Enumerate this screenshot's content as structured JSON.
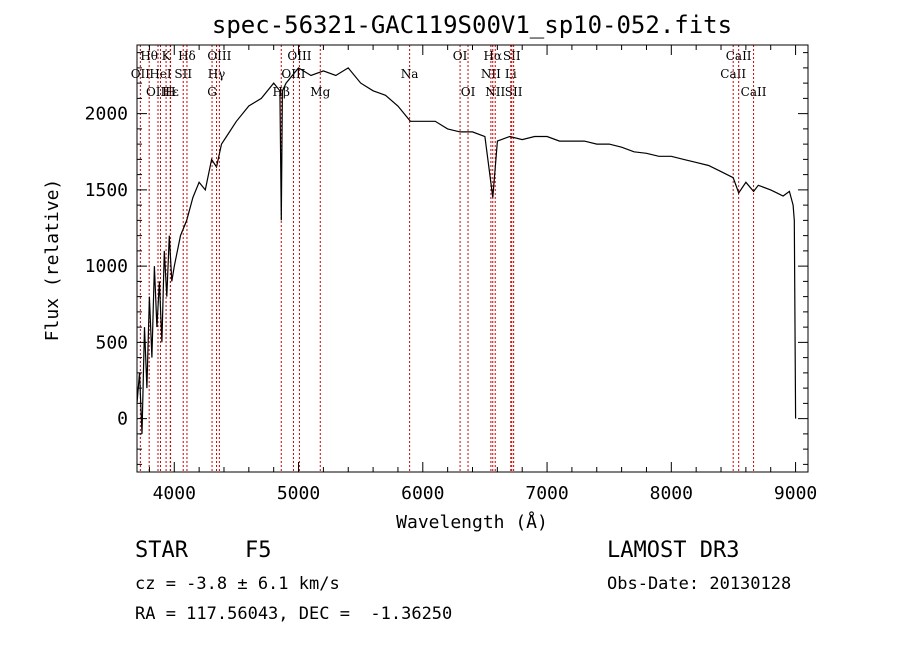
{
  "chart_data": {
    "type": "line",
    "title": "spec-56321-GAC119S00V1_sp10-052.fits",
    "xlabel": "Wavelength (Å)",
    "ylabel": "Flux (relative)",
    "xlim": [
      3700,
      9100
    ],
    "ylim": [
      -350,
      2450
    ],
    "xticks": [
      4000,
      5000,
      6000,
      7000,
      8000,
      9000
    ],
    "xtick_labels": [
      "4000",
      "5000",
      "6000",
      "7000",
      "8000",
      "9000"
    ],
    "yticks": [
      0,
      500,
      1000,
      1500,
      2000
    ],
    "ytick_labels": [
      "0",
      "500",
      "1000",
      "1500",
      "2000"
    ],
    "series": [
      {
        "name": "flux",
        "x": [
          3700,
          3720,
          3740,
          3760,
          3780,
          3800,
          3820,
          3840,
          3860,
          3880,
          3900,
          3920,
          3940,
          3960,
          3980,
          4000,
          4050,
          4100,
          4150,
          4200,
          4250,
          4300,
          4340,
          4380,
          4420,
          4500,
          4600,
          4700,
          4800,
          4850,
          4861,
          4870,
          4900,
          4950,
          5000,
          5100,
          5200,
          5300,
          5400,
          5500,
          5600,
          5700,
          5800,
          5900,
          6000,
          6100,
          6200,
          6300,
          6400,
          6500,
          6563,
          6600,
          6700,
          6800,
          6900,
          7000,
          7100,
          7200,
          7300,
          7400,
          7500,
          7600,
          7700,
          7800,
          7900,
          8000,
          8100,
          8200,
          8300,
          8400,
          8498,
          8542,
          8600,
          8662,
          8700,
          8800,
          8850,
          8900,
          8950,
          8980,
          8990,
          9000
        ],
        "values": [
          100,
          300,
          -100,
          600,
          200,
          800,
          400,
          1000,
          600,
          900,
          500,
          1100,
          800,
          1200,
          900,
          1000,
          1200,
          1300,
          1450,
          1550,
          1500,
          1700,
          1650,
          1800,
          1850,
          1950,
          2050,
          2100,
          2200,
          2150,
          1300,
          2150,
          2200,
          2250,
          2300,
          2250,
          2280,
          2250,
          2300,
          2200,
          2150,
          2120,
          2050,
          1950,
          1950,
          1950,
          1900,
          1880,
          1880,
          1850,
          1450,
          1820,
          1850,
          1830,
          1850,
          1850,
          1820,
          1820,
          1820,
          1800,
          1800,
          1780,
          1750,
          1740,
          1720,
          1720,
          1700,
          1680,
          1660,
          1620,
          1580,
          1480,
          1550,
          1490,
          1530,
          1500,
          1480,
          1460,
          1490,
          1400,
          1300,
          0
        ]
      }
    ],
    "lines": [
      {
        "label": "OII",
        "wavelength": 3727,
        "row": 1
      },
      {
        "label": "Hθ",
        "wavelength": 3798,
        "row": 0
      },
      {
        "label": "OIII",
        "wavelength": 3869,
        "row": 2
      },
      {
        "label": "HeI",
        "wavelength": 3889,
        "row": 1
      },
      {
        "label": "K",
        "wavelength": 3934,
        "row": 0
      },
      {
        "label": "Hε",
        "wavelength": 3970,
        "row": 2
      },
      {
        "label": "SII",
        "wavelength": 4072,
        "row": 1
      },
      {
        "label": "H",
        "wavelength": 3968,
        "row": 2
      },
      {
        "label": "Hδ",
        "wavelength": 4102,
        "row": 0
      },
      {
        "label": "G",
        "wavelength": 4304,
        "row": 2
      },
      {
        "label": "Hγ",
        "wavelength": 4340,
        "row": 1
      },
      {
        "label": "OIII",
        "wavelength": 4363,
        "row": 0
      },
      {
        "label": "Hβ",
        "wavelength": 4861,
        "row": 2
      },
      {
        "label": "OIII",
        "wavelength": 4959,
        "row": 1
      },
      {
        "label": "OIII",
        "wavelength": 5007,
        "row": 0
      },
      {
        "label": "Mg",
        "wavelength": 5175,
        "row": 2
      },
      {
        "label": "Na",
        "wavelength": 5894,
        "row": 1
      },
      {
        "label": "OI",
        "wavelength": 6300,
        "row": 0
      },
      {
        "label": "OI",
        "wavelength": 6364,
        "row": 2
      },
      {
        "label": "NII",
        "wavelength": 6548,
        "row": 1
      },
      {
        "label": "Hα",
        "wavelength": 6563,
        "row": 0
      },
      {
        "label": "NII",
        "wavelength": 6583,
        "row": 2
      },
      {
        "label": "Li",
        "wavelength": 6708,
        "row": 1
      },
      {
        "label": "SII",
        "wavelength": 6716,
        "row": 0
      },
      {
        "label": "SII",
        "wavelength": 6731,
        "row": 2
      },
      {
        "label": "CaII",
        "wavelength": 8498,
        "row": 1
      },
      {
        "label": "CaII",
        "wavelength": 8542,
        "row": 0
      },
      {
        "label": "CaII",
        "wavelength": 8662,
        "row": 2
      }
    ]
  },
  "info": {
    "class_label": "STAR",
    "subclass": "F5",
    "survey": "LAMOST DR3",
    "cz": "cz = -3.8 ± 6.1 km/s",
    "obs_date": "Obs-Date: 20130128",
    "coords": "RA = 117.56043, DEC =  -1.36250"
  },
  "colors": {
    "line_marker": "#cc0000",
    "spectrum": "#000000"
  }
}
